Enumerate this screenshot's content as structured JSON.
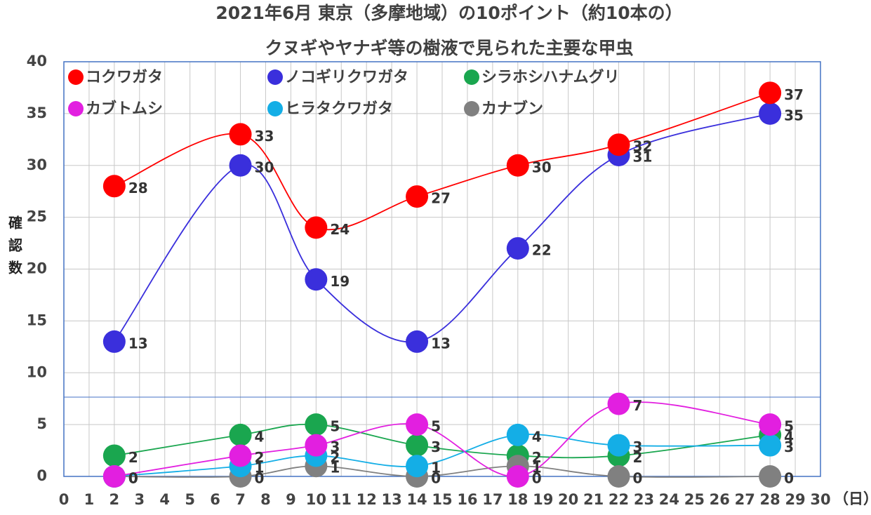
{
  "chart_data": {
    "type": "line",
    "title": "2021年6月 東京（多摩地域）の10ポイント（約10本の）",
    "subtitle": "クヌギやヤナギ等の樹液で見られた主要な甲虫",
    "ylabel": "確認数",
    "xlabel": "（日）",
    "x": [
      2,
      7,
      10,
      14,
      18,
      22,
      28
    ],
    "series": [
      {
        "name": "シラホシハナムグリ",
        "color": "#1aa64f",
        "values": [
          2,
          4,
          5,
          3,
          2,
          2,
          4
        ]
      },
      {
        "name": "カナブン",
        "color": "#808080",
        "values": [
          0,
          0,
          1,
          0,
          1,
          0,
          0
        ]
      },
      {
        "name": "ヒラタクワガタ",
        "color": "#14aee6",
        "values": [
          0,
          1,
          2,
          1,
          4,
          3,
          3
        ]
      },
      {
        "name": "カブトムシ",
        "color": "#e21fe0",
        "values": [
          0,
          2,
          3,
          5,
          0,
          7,
          5
        ]
      },
      {
        "name": "ノコギリクワガタ",
        "color": "#3a2fdc",
        "values": [
          13,
          30,
          19,
          13,
          22,
          31,
          35
        ]
      },
      {
        "name": "コクワガタ",
        "color": "#ff0000",
        "values": [
          28,
          33,
          24,
          27,
          30,
          32,
          37
        ]
      }
    ],
    "xlim": [
      0,
      30
    ],
    "xticks": [
      0,
      1,
      2,
      3,
      4,
      5,
      6,
      7,
      8,
      9,
      10,
      11,
      12,
      13,
      14,
      15,
      16,
      17,
      18,
      19,
      20,
      21,
      22,
      23,
      24,
      25,
      26,
      27,
      28,
      29,
      30
    ],
    "ylim": [
      0,
      40
    ],
    "yticks": [
      0,
      5,
      10,
      15,
      20,
      25,
      30,
      35,
      40
    ],
    "grid": true
  }
}
